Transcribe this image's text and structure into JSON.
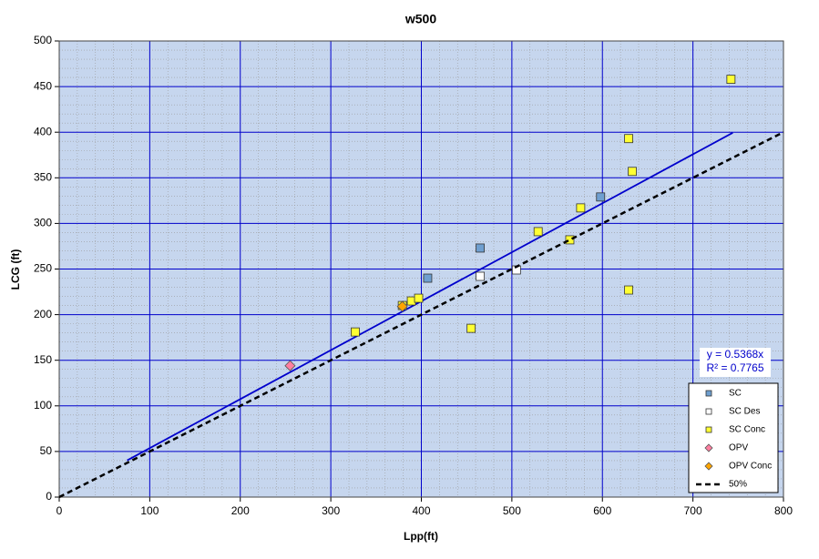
{
  "chart_data": {
    "type": "scatter",
    "title": "w500",
    "x_label": "Lpp(ft)",
    "y_label": "LCG (ft)",
    "xlim": [
      0,
      800
    ],
    "ylim": [
      0,
      500
    ],
    "xticks": [
      0,
      100,
      200,
      300,
      400,
      500,
      600,
      700,
      800
    ],
    "yticks": [
      0,
      50,
      100,
      150,
      200,
      250,
      300,
      350,
      400,
      450,
      500
    ],
    "grid": true,
    "minor_xstep": 20,
    "minor_ystep": 10,
    "legend": "bottom-right",
    "series": [
      {
        "name": "SC",
        "color": "#6f9fd0",
        "marker": "square",
        "x": [
          407,
          465,
          598
        ],
        "values": [
          240,
          273,
          329
        ]
      },
      {
        "name": "SC Des",
        "color": "#ffffff",
        "marker": "square",
        "x": [
          465,
          505
        ],
        "values": [
          242,
          249
        ]
      },
      {
        "name": "SC Conc",
        "color": "#ffff33",
        "marker": "square",
        "x": [
          742,
          629,
          633,
          576,
          529,
          564,
          629,
          455,
          327,
          389,
          397,
          379
        ],
        "values": [
          458,
          393,
          357,
          317,
          291,
          282,
          227,
          185,
          181,
          215,
          218,
          210
        ]
      },
      {
        "name": "OPV",
        "color": "#ff7fa0",
        "marker": "diamond",
        "x": [
          255
        ],
        "values": [
          144
        ]
      },
      {
        "name": "OPV Conc",
        "color": "#ffa500",
        "marker": "diamond",
        "x": [
          379
        ],
        "values": [
          209
        ]
      },
      {
        "name": "50%",
        "color": "#000000",
        "marker": "dashed-line",
        "x": [
          0,
          800
        ],
        "values": [
          0,
          400
        ]
      }
    ],
    "trendline": {
      "equation": "y = 0.5368x",
      "r2": "R² = 0.7765",
      "slope": 0.5368,
      "x": [
        75,
        744
      ],
      "color": "#0000cc"
    }
  }
}
